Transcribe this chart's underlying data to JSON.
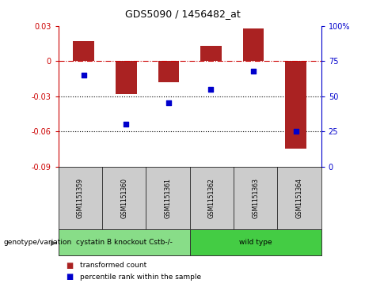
{
  "title": "GDS5090 / 1456482_at",
  "samples": [
    "GSM1151359",
    "GSM1151360",
    "GSM1151361",
    "GSM1151362",
    "GSM1151363",
    "GSM1151364"
  ],
  "bar_values": [
    0.017,
    -0.028,
    -0.018,
    0.013,
    0.028,
    -0.075
  ],
  "percentile_values": [
    65,
    30,
    45,
    55,
    68,
    25
  ],
  "bar_color": "#aa2222",
  "dot_color": "#0000cc",
  "ylim_left": [
    -0.09,
    0.03
  ],
  "ylim_right": [
    0,
    100
  ],
  "yticks_left": [
    0.03,
    0,
    -0.03,
    -0.06,
    -0.09
  ],
  "yticks_right": [
    100,
    75,
    50,
    25,
    0
  ],
  "ytick_labels_right": [
    "100%",
    "75",
    "50",
    "25",
    "0"
  ],
  "groups": [
    {
      "label": "cystatin B knockout Cstb-/-",
      "indices": [
        0,
        1,
        2
      ],
      "color": "#88dd88"
    },
    {
      "label": "wild type",
      "indices": [
        3,
        4,
        5
      ],
      "color": "#44cc44"
    }
  ],
  "group_label": "genotype/variation",
  "legend_bar_label": "transformed count",
  "legend_dot_label": "percentile rank within the sample",
  "bar_width": 0.5,
  "hline_y": 0,
  "hline_color": "#cc0000",
  "dotted_lines": [
    -0.03,
    -0.06
  ],
  "dotted_color": "#000000",
  "bg_color": "#ffffff",
  "plot_bg_color": "#ffffff",
  "sample_box_color": "#cccccc"
}
